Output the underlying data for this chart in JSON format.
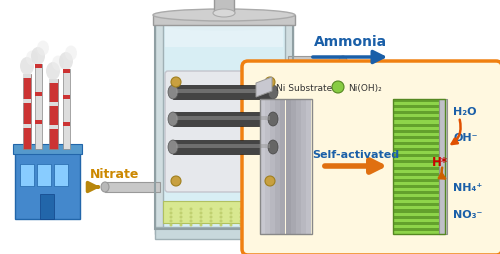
{
  "bg_color": "#ffffff",
  "ammonia_text": "Ammonia",
  "nitrate_text": "Nitrate",
  "legend_ni_text": "Ni Substrate",
  "legend_nioh_text": "Ni(OH)₂",
  "self_activated_text": "Self-activated",
  "h_star_text": "H*",
  "water_text": "H₂O",
  "oh_text": "OH⁻",
  "nh4_text": "NH₄⁺",
  "no3_text": "NO₃⁻",
  "blue_text_color": "#1a5fa8",
  "orange_arrow_color": "#e07010",
  "red_text_color": "#cc0000",
  "gold_color": "#b8860b",
  "factory_blue": "#4488cc",
  "ni_oh_green_light": "#8ed44a",
  "ni_oh_green_dark": "#5a9a20",
  "ni_oh_green_stripe": "#3a7010",
  "tank_fill": "#c8e8f0",
  "tank_edge": "#a0b8c0",
  "inset_fill": "#fff8e0",
  "inset_edge": "#f08010",
  "plate_light": "#d0d0d8",
  "plate_dark": "#909098"
}
